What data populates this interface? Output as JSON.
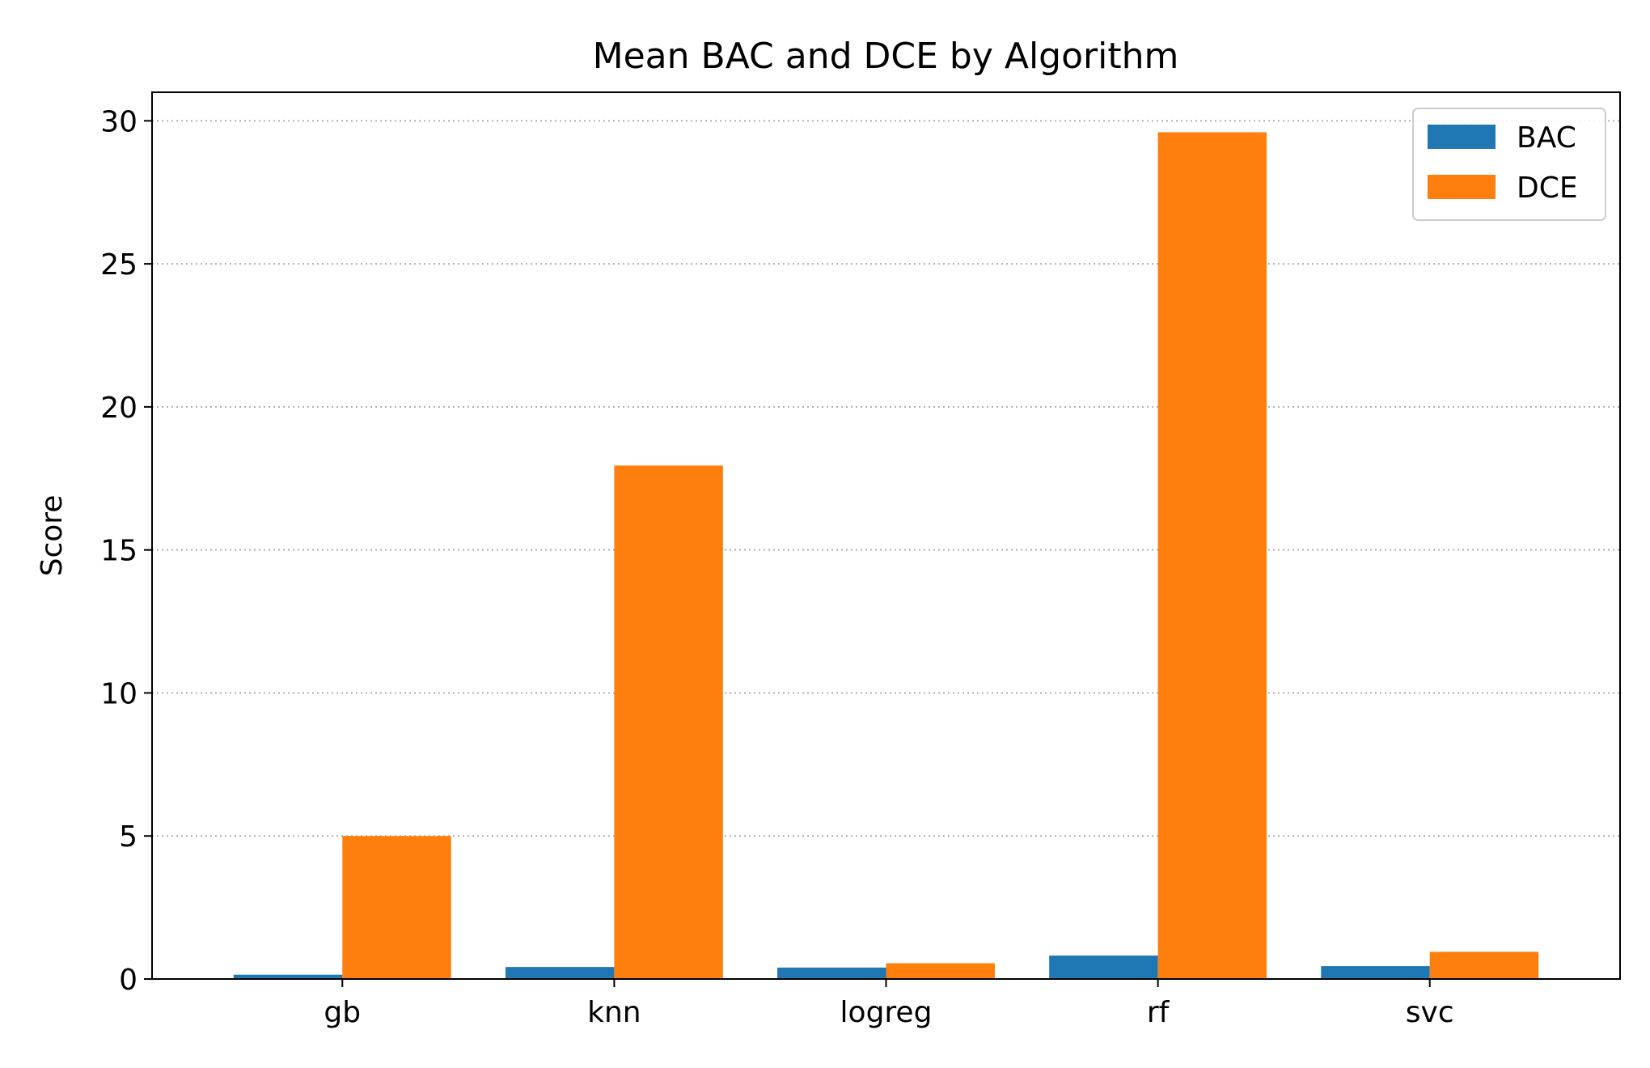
{
  "chart_data": {
    "type": "bar",
    "title": "Mean BAC and DCE by Algorithm",
    "xlabel": "",
    "ylabel": "Score",
    "categories": [
      "gb",
      "knn",
      "logreg",
      "rf",
      "svc"
    ],
    "series": [
      {
        "name": "BAC",
        "values": [
          0.15,
          0.42,
          0.4,
          0.82,
          0.45
        ],
        "color": "#1f77b4"
      },
      {
        "name": "DCE",
        "values": [
          5.0,
          17.95,
          0.55,
          29.6,
          0.95
        ],
        "color": "#ff7f0e"
      }
    ],
    "ylim": [
      0,
      31
    ],
    "yticks": [
      0,
      5,
      10,
      15,
      20,
      25,
      30
    ],
    "grid": "y-dotted",
    "legend": "top-right"
  }
}
